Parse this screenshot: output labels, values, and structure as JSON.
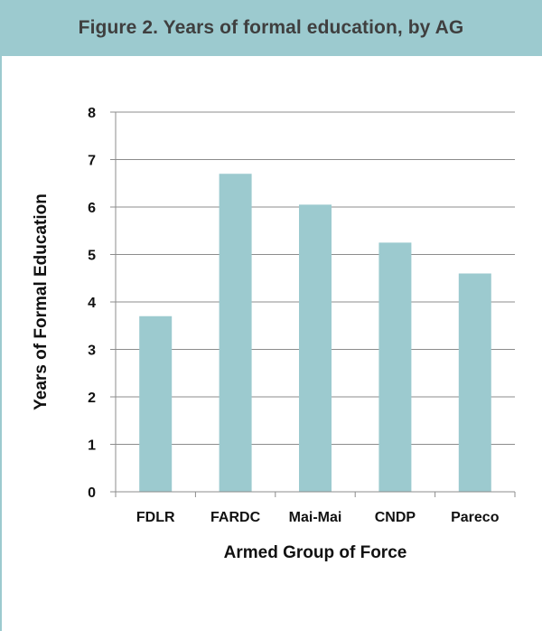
{
  "header": {
    "title": "Figure 2. Years of formal education, by AG"
  },
  "colors": {
    "header_bg": "#9ccacf",
    "bar": "#9ccacf",
    "grid": "#8c8c8c",
    "text": "#111111"
  },
  "chart_data": {
    "type": "bar",
    "categories": [
      "FDLR",
      "FARDC",
      "Mai-Mai",
      "CNDP",
      "Pareco"
    ],
    "values": [
      3.7,
      6.7,
      6.05,
      5.25,
      4.6
    ],
    "title": "Figure 2. Years of formal education, by AG",
    "xlabel": "Armed Group of Force",
    "ylabel": "Years of Formal Education",
    "ylim": [
      0,
      8
    ],
    "yticks": [
      "0",
      "1",
      "2",
      "3",
      "4",
      "5",
      "6",
      "7",
      "8"
    ],
    "grid": true,
    "legend": "none"
  }
}
